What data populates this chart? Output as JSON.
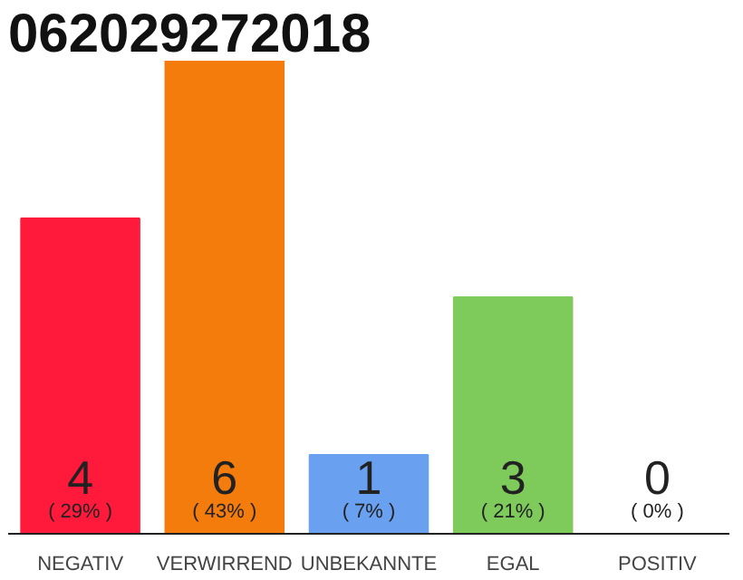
{
  "chart_data": {
    "type": "bar",
    "title": "062029272018",
    "categories": [
      "NEGATIV",
      "VERWIRREND",
      "UNBEKANNTE",
      "EGAL",
      "POSITIV"
    ],
    "values": [
      4,
      6,
      1,
      3,
      0
    ],
    "colors": [
      "#ff1a3c",
      "#f47c0c",
      "#6aa0f0",
      "#7ecb5c",
      "#cccccc"
    ],
    "value_labels": [
      "4\n( 29% )",
      "6\n( 43% )",
      "1\n( 7% )",
      "3\n( 21% )",
      "0\n( 0% )"
    ],
    "ylim": [
      0,
      6
    ],
    "tick_labels": "x",
    "grid": false
  }
}
